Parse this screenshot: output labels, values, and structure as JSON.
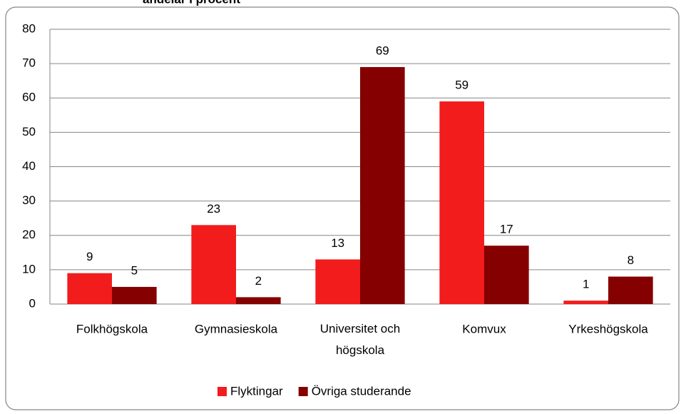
{
  "chart_data": {
    "type": "bar",
    "title": "andelar i procent",
    "categories": [
      "Folkhögskola",
      "Gymnasieskola",
      "Universitet och högskola",
      "Komvux",
      "Yrkeshögskola"
    ],
    "series": [
      {
        "name": "Flyktingar",
        "color": "#f21c1c",
        "values": [
          9,
          23,
          13,
          59,
          1
        ]
      },
      {
        "name": "Övriga studerande",
        "color": "#850000",
        "values": [
          5,
          2,
          69,
          17,
          8
        ]
      }
    ],
    "ylim": [
      0,
      80
    ],
    "yticks": [
      0,
      10,
      20,
      30,
      40,
      50,
      60,
      70,
      80
    ],
    "grid": true,
    "legend": "bottom"
  }
}
